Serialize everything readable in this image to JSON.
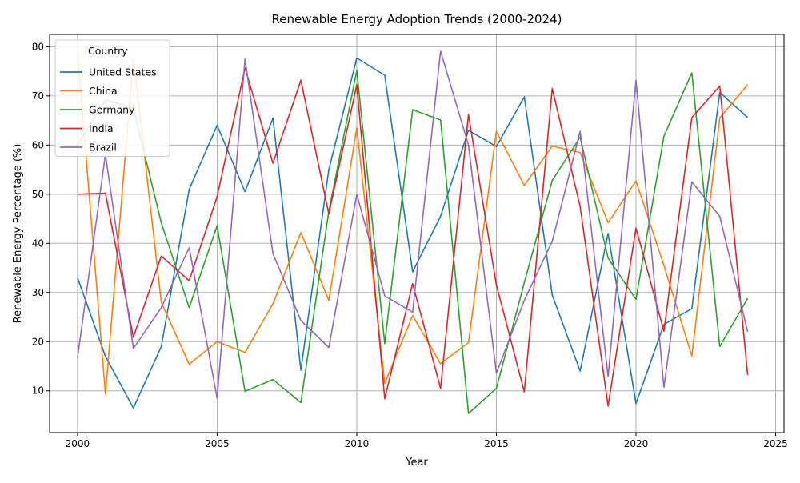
{
  "chart_data": {
    "type": "line",
    "title": "Renewable Energy Adoption Trends (2000-2024)",
    "xlabel": "Year",
    "ylabel": "Renewable Energy Percentage (%)",
    "xlim": [
      1999,
      2025.3
    ],
    "ylim": [
      1.5,
      82.5
    ],
    "xticks": [
      2000,
      2005,
      2010,
      2015,
      2020,
      2025
    ],
    "yticks": [
      10,
      20,
      30,
      40,
      50,
      60,
      70,
      80
    ],
    "grid": true,
    "legend": {
      "title": "Country",
      "placement": "top-left"
    },
    "x": [
      2000,
      2001,
      2002,
      2003,
      2004,
      2005,
      2006,
      2007,
      2008,
      2009,
      2010,
      2011,
      2012,
      2013,
      2014,
      2015,
      2016,
      2017,
      2018,
      2019,
      2020,
      2021,
      2022,
      2023,
      2024
    ],
    "series": [
      {
        "name": "United States",
        "color": "#1f77b4",
        "values": [
          33.0,
          17.0,
          6.5,
          19.0,
          51.0,
          64.0,
          50.5,
          65.5,
          14.2,
          55.0,
          77.7,
          74.2,
          34.2,
          45.5,
          63.0,
          59.7,
          69.8,
          29.5,
          14.0,
          42.0,
          7.4,
          23.5,
          26.7,
          70.7,
          65.6
        ]
      },
      {
        "name": "China",
        "color": "#ff7f0e",
        "values": [
          79.0,
          9.3,
          77.8,
          28.0,
          15.4,
          20.0,
          17.8,
          27.7,
          42.2,
          28.4,
          63.5,
          11.5,
          25.3,
          15.5,
          19.8,
          62.8,
          51.8,
          59.8,
          58.5,
          44.2,
          52.7,
          35.5,
          17.1,
          65.5,
          72.3
        ]
      },
      {
        "name": "Germany",
        "color": "#2ca02c",
        "values": [
          60.0,
          69.2,
          67.5,
          44.2,
          26.9,
          43.6,
          9.9,
          12.3,
          7.6,
          46.5,
          75.2,
          19.6,
          67.2,
          65.1,
          5.4,
          10.5,
          32.0,
          52.8,
          61.6,
          37.0,
          28.6,
          61.8,
          74.7,
          19.0,
          28.8
        ]
      },
      {
        "name": "India",
        "color": "#d62728",
        "values": [
          50.0,
          50.2,
          20.9,
          37.4,
          32.4,
          49.5,
          75.7,
          56.3,
          73.2,
          46.0,
          72.3,
          8.4,
          31.8,
          10.5,
          66.2,
          31.5,
          9.8,
          71.5,
          47.5,
          6.9,
          43.1,
          22.1,
          65.6,
          72.0,
          13.2
        ]
      },
      {
        "name": "Brazil",
        "color": "#9467bd",
        "values": [
          16.7,
          58.1,
          18.6,
          26.9,
          39.1,
          8.5,
          77.5,
          37.9,
          24.3,
          18.8,
          50.0,
          29.3,
          26.0,
          79.1,
          60.0,
          13.6,
          28.4,
          40.4,
          62.8,
          12.9,
          73.2,
          10.7,
          52.5,
          45.5,
          22.0
        ]
      }
    ]
  }
}
